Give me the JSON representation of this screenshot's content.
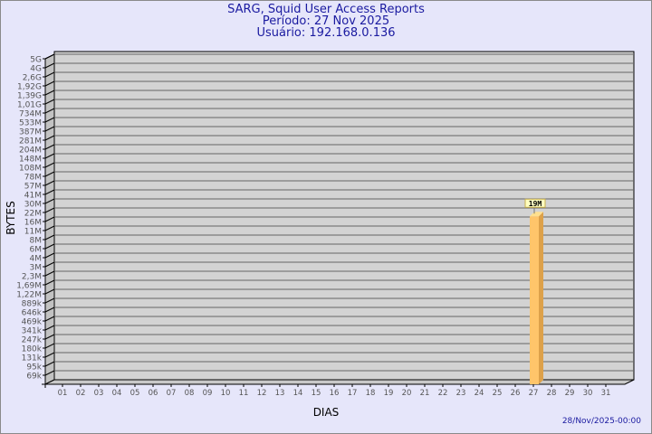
{
  "header": {
    "title": "SARG, Squid User Access Reports",
    "period": "Período: 27 Nov 2025",
    "user": "Usuário: 192.168.0.136"
  },
  "footer": {
    "timestamp": "28/Nov/2025-00:00"
  },
  "chart_data": {
    "type": "bar",
    "title": "SARG, Squid User Access Reports",
    "xlabel": "DIAS",
    "ylabel": "BYTES",
    "y_scale": "log",
    "y_tick_labels": [
      "5G",
      "4G",
      "2,6G",
      "1,92G",
      "1,39G",
      "1,01G",
      "734M",
      "533M",
      "387M",
      "281M",
      "204M",
      "148M",
      "108M",
      "78M",
      "57M",
      "41M",
      "30M",
      "22M",
      "16M",
      "11M",
      "8M",
      "6M",
      "4M",
      "3M",
      "2,3M",
      "1,69M",
      "1,22M",
      "889k",
      "646k",
      "469k",
      "341k",
      "247k",
      "180k",
      "131k",
      "95k",
      "69k"
    ],
    "categories": [
      "01",
      "02",
      "03",
      "04",
      "05",
      "06",
      "07",
      "08",
      "09",
      "10",
      "11",
      "12",
      "13",
      "14",
      "15",
      "16",
      "17",
      "18",
      "19",
      "20",
      "21",
      "22",
      "23",
      "24",
      "25",
      "26",
      "27",
      "28",
      "29",
      "30",
      "31"
    ],
    "values": [
      0,
      0,
      0,
      0,
      0,
      0,
      0,
      0,
      0,
      0,
      0,
      0,
      0,
      0,
      0,
      0,
      0,
      0,
      0,
      0,
      0,
      0,
      0,
      0,
      0,
      0,
      19000000,
      0,
      0,
      0,
      0
    ],
    "data_labels": {
      "27": "19M"
    },
    "grid": true,
    "colors": {
      "bar_front": "#ffc56a",
      "bar_side": "#dda14a",
      "bar_top": "#ffe08f",
      "wall": "#d3d3d3",
      "background": "#e6e6fa"
    }
  }
}
